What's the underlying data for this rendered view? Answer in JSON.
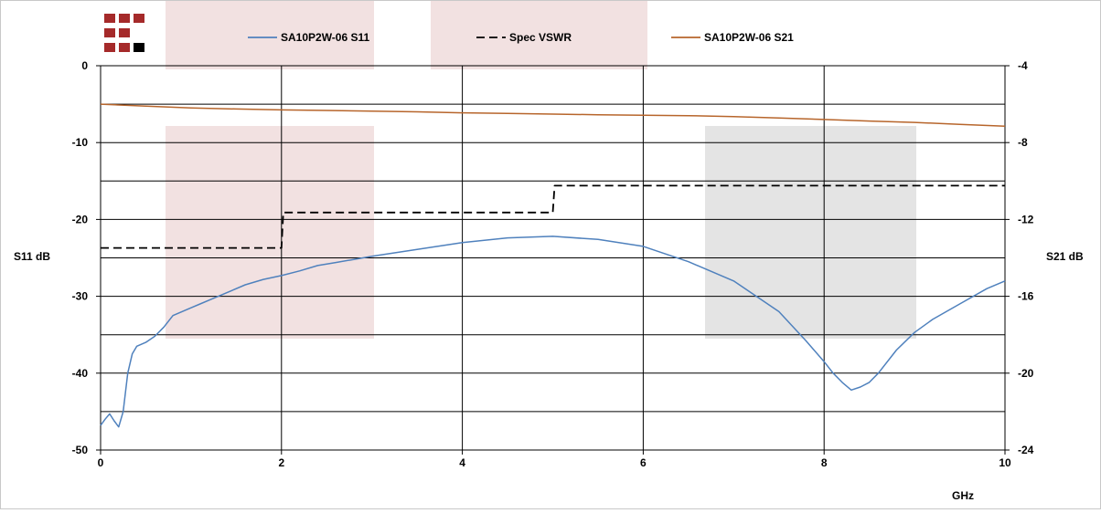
{
  "chart_data": {
    "type": "line",
    "x_unit_label": "GHz",
    "left_axis": {
      "label": "S11 dB",
      "range": [
        -50,
        0
      ],
      "ticks": [
        0,
        -10,
        -20,
        -30,
        -40,
        -50
      ]
    },
    "right_axis": {
      "label": "S21 dB",
      "range": [
        -24,
        -4
      ],
      "ticks": [
        -4,
        -8,
        -12,
        -16,
        -20,
        -24
      ]
    },
    "x_axis": {
      "range": [
        0,
        10
      ],
      "ticks": [
        0,
        2,
        4,
        6,
        8,
        10
      ]
    },
    "grid": {
      "horizontal_at": [
        0,
        -5,
        -10,
        -15,
        -20,
        -25,
        -30,
        -35,
        -40,
        -45,
        -50
      ],
      "vertical_at": [
        2,
        4,
        6,
        8,
        10
      ]
    },
    "legend_position": "top",
    "series": [
      {
        "name": "SA10P2W-06 S11",
        "axis": "left",
        "color": "#4f81bd",
        "style": "solid",
        "x": [
          0,
          0.05,
          0.1,
          0.15,
          0.2,
          0.25,
          0.3,
          0.35,
          0.4,
          0.5,
          0.6,
          0.7,
          0.8,
          0.9,
          1.0,
          1.1,
          1.2,
          1.4,
          1.6,
          1.8,
          2.0,
          2.2,
          2.4,
          2.6,
          2.8,
          3.0,
          3.5,
          4.0,
          4.5,
          5.0,
          5.5,
          6.0,
          6.5,
          7.0,
          7.5,
          7.8,
          8.0,
          8.1,
          8.2,
          8.3,
          8.4,
          8.5,
          8.6,
          8.8,
          9.0,
          9.2,
          9.5,
          9.8,
          10.0
        ],
        "values": [
          -46.8,
          -46.0,
          -45.3,
          -46.2,
          -47.0,
          -45.0,
          -40.0,
          -37.5,
          -36.5,
          -36.0,
          -35.2,
          -34.0,
          -32.5,
          -32.0,
          -31.5,
          -31.0,
          -30.5,
          -29.5,
          -28.5,
          -27.8,
          -27.3,
          -26.7,
          -26.0,
          -25.6,
          -25.2,
          -24.8,
          -23.9,
          -23.0,
          -22.4,
          -22.2,
          -22.6,
          -23.5,
          -25.5,
          -28.0,
          -32.0,
          -35.8,
          -38.5,
          -40.0,
          -41.2,
          -42.2,
          -41.8,
          -41.2,
          -40.0,
          -37.0,
          -34.7,
          -33.0,
          -31.0,
          -29.0,
          -28.0
        ]
      },
      {
        "name": "Spec VSWR",
        "axis": "left",
        "color": "#000000",
        "style": "dashed",
        "x": [
          0,
          2.0,
          2.02,
          5.0,
          5.02,
          10.0
        ],
        "values": [
          -23.7,
          -23.7,
          -19.1,
          -19.1,
          -15.6,
          -15.6
        ]
      },
      {
        "name": "SA10P2W-06 S21",
        "axis": "right",
        "color": "#b7652b",
        "style": "solid",
        "x": [
          0,
          0.5,
          1,
          1.5,
          2,
          2.5,
          3,
          3.5,
          4,
          4.5,
          5,
          5.5,
          6,
          6.5,
          7,
          7.5,
          8,
          8.5,
          9,
          9.5,
          10
        ],
        "values": [
          -6.0,
          -6.1,
          -6.2,
          -6.25,
          -6.3,
          -6.33,
          -6.36,
          -6.4,
          -6.45,
          -6.48,
          -6.52,
          -6.55,
          -6.58,
          -6.6,
          -6.65,
          -6.72,
          -6.8,
          -6.88,
          -6.95,
          -7.05,
          -7.15
        ]
      }
    ]
  },
  "decor": {
    "highlight_colors": {
      "pink": "#f2e1e1",
      "gray": "#e4e4e4"
    }
  }
}
